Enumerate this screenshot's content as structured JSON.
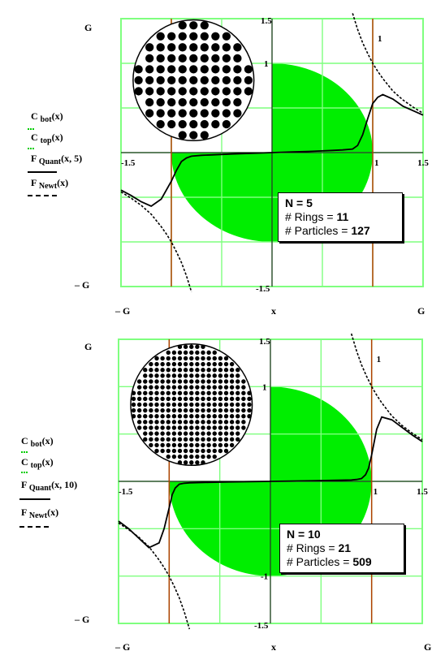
{
  "chart_data": [
    {
      "type": "line",
      "panel": "top",
      "x_range": [
        -1.5,
        1.5
      ],
      "y_range": [
        -1.5,
        1.5
      ],
      "tick_labels": {
        "x_left": "-1.5",
        "x_right": "1.5",
        "x_mark_one": "1",
        "y_top": "1.5",
        "y_bottom": "-1.5",
        "y_one": "1",
        "y_one_right": "1"
      },
      "axis_labels": {
        "y_top": "G",
        "y_bottom": "– G",
        "x_left": "– G",
        "x_center": "x",
        "x_right": "G"
      },
      "legend": [
        {
          "func": "C",
          "sub": "bot",
          "arg": "(x)"
        },
        {
          "func": "C",
          "sub": "top",
          "arg": "(x)"
        },
        {
          "func": "F",
          "sub": "Quant",
          "arg": "(x, 5)"
        },
        {
          "func": "F",
          "sub": "Newt",
          "arg": "(x)"
        }
      ],
      "info": {
        "n_label": "N =",
        "n_value": "5",
        "rings_label": "# Rings =",
        "rings_value": "11",
        "particles_label": "# Particles  =",
        "particles_value": "127"
      },
      "vertical_lines_x": [
        -1,
        1
      ],
      "grid_color": "#7fff7f",
      "fill_color": "#00ee00",
      "series": [
        {
          "name": "F_Quant",
          "style": "solid",
          "x": [
            -1.5,
            -1.4,
            -1.3,
            -1.2,
            -1.1,
            -1.0,
            -0.95,
            -0.9,
            -0.85,
            -0.8,
            -0.7,
            -0.6,
            -0.4,
            -0.2,
            0,
            0.2,
            0.4,
            0.6,
            0.7,
            0.8,
            0.85,
            0.9,
            0.95,
            1.0,
            1.05,
            1.1,
            1.2,
            1.3,
            1.4,
            1.5
          ],
          "y": [
            -0.42,
            -0.48,
            -0.55,
            -0.6,
            -0.52,
            -0.32,
            -0.2,
            -0.1,
            -0.06,
            -0.04,
            -0.03,
            -0.025,
            -0.015,
            -0.008,
            0,
            0.008,
            0.015,
            0.025,
            0.03,
            0.04,
            0.08,
            0.2,
            0.38,
            0.55,
            0.62,
            0.65,
            0.6,
            0.52,
            0.47,
            0.42
          ]
        },
        {
          "name": "F_Newt",
          "style": "dashed",
          "x": [
            -1.5,
            -1.4,
            -1.3,
            -1.2,
            -1.1,
            -1.05,
            -1.0,
            -0.95,
            -0.9,
            -0.85,
            -0.8
          ],
          "y": [
            -0.44,
            -0.51,
            -0.59,
            -0.69,
            -0.83,
            -0.91,
            -1.0,
            -1.11,
            -1.23,
            -1.38,
            -1.56
          ]
        },
        {
          "name": "F_Newt_right",
          "style": "dashed",
          "x": [
            0.8,
            0.85,
            0.9,
            0.95,
            1.0,
            1.05,
            1.1,
            1.2,
            1.3,
            1.4,
            1.5
          ],
          "y": [
            1.56,
            1.38,
            1.23,
            1.11,
            1.0,
            0.91,
            0.83,
            0.69,
            0.59,
            0.51,
            0.44
          ]
        }
      ]
    },
    {
      "type": "line",
      "panel": "bottom",
      "x_range": [
        -1.5,
        1.5
      ],
      "y_range": [
        -1.5,
        1.5
      ],
      "tick_labels": {
        "x_left": "-1.5",
        "x_right": "1.5",
        "x_mark_one": "1",
        "y_top": "1.5",
        "y_bottom": "-1.5",
        "y_one": "1",
        "y_one_right": "1",
        "y_neg_one": "-1"
      },
      "axis_labels": {
        "y_top": "G",
        "y_bottom": "– G",
        "x_left": "– G",
        "x_center": "x",
        "x_right": "G"
      },
      "legend": [
        {
          "func": "C",
          "sub": "bot",
          "arg": "(x)"
        },
        {
          "func": "C",
          "sub": "top",
          "arg": "(x)"
        },
        {
          "func": "F",
          "sub": "Quant",
          "arg": "(x, 10)"
        },
        {
          "func": "F",
          "sub": "Newt",
          "arg": "(x)"
        }
      ],
      "info": {
        "n_label": "N =",
        "n_value": "10",
        "rings_label": "# Rings  =",
        "rings_value": "21",
        "particles_label": "# Particles  =",
        "particles_value": "509"
      },
      "vertical_lines_x": [
        -1,
        1
      ],
      "grid_color": "#7fff7f",
      "fill_color": "#00ee00",
      "series": [
        {
          "name": "F_Quant",
          "style": "solid",
          "x": [
            -1.5,
            -1.4,
            -1.3,
            -1.2,
            -1.1,
            -1.05,
            -1.0,
            -0.97,
            -0.94,
            -0.9,
            -0.85,
            -0.8,
            -0.6,
            -0.4,
            -0.2,
            0,
            0.2,
            0.4,
            0.6,
            0.8,
            0.85,
            0.9,
            0.94,
            0.97,
            1.0,
            1.05,
            1.1,
            1.2,
            1.3,
            1.4,
            1.5
          ],
          "y": [
            -0.42,
            -0.5,
            -0.6,
            -0.7,
            -0.65,
            -0.5,
            -0.28,
            -0.14,
            -0.07,
            -0.03,
            -0.02,
            -0.015,
            -0.01,
            -0.006,
            -0.003,
            0,
            0.003,
            0.006,
            0.01,
            0.015,
            0.02,
            0.03,
            0.07,
            0.14,
            0.28,
            0.55,
            0.68,
            0.65,
            0.57,
            0.49,
            0.42
          ]
        },
        {
          "name": "F_Newt",
          "style": "dashed",
          "x": [
            -1.5,
            -1.4,
            -1.3,
            -1.2,
            -1.1,
            -1.05,
            -1.0,
            -0.95,
            -0.9,
            -0.85,
            -0.8
          ],
          "y": [
            -0.44,
            -0.51,
            -0.59,
            -0.69,
            -0.83,
            -0.91,
            -1.0,
            -1.11,
            -1.23,
            -1.38,
            -1.56
          ]
        },
        {
          "name": "F_Newt_right",
          "style": "dashed",
          "x": [
            0.8,
            0.85,
            0.9,
            0.95,
            1.0,
            1.05,
            1.1,
            1.2,
            1.3,
            1.4,
            1.5
          ],
          "y": [
            1.56,
            1.38,
            1.23,
            1.11,
            1.0,
            0.91,
            0.83,
            0.69,
            0.59,
            0.51,
            0.44
          ]
        }
      ]
    }
  ],
  "colors": {
    "grid": "#7fff7f",
    "fill": "#00ee00",
    "vline": "#b04000",
    "curve": "#000000"
  },
  "top_inset": {
    "dot_rows": 11
  },
  "bottom_inset": {
    "dot_rows": 21
  }
}
